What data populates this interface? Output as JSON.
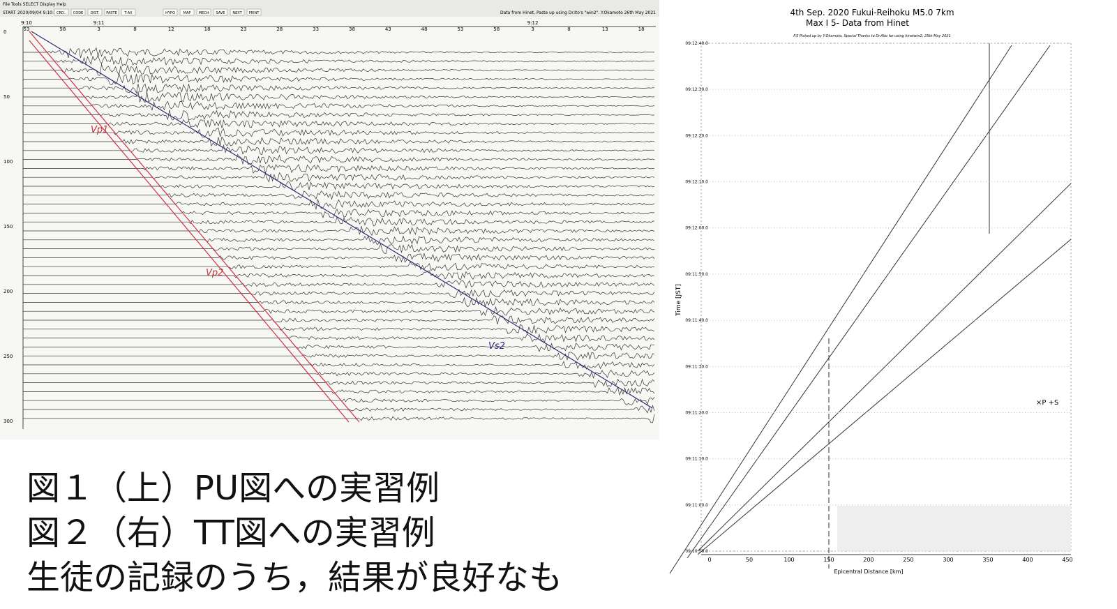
{
  "toolbar": {
    "menu": "File  Tools  SELECT  Display  Help",
    "start_label": "START",
    "start_value": "2020/09/04 9:10:34",
    "buttons": [
      "CRD..",
      "CODE",
      "DIST.",
      "PASTE",
      "T-AX",
      "HYPO",
      "MAP",
      "MECH",
      "SAVE",
      "NEXT",
      "PRINT"
    ],
    "credit": "Data from Hinet, Paste up using Dr.Ito's \"win2\". Y.Okamoto 26th May 2021"
  },
  "seismogram": {
    "time_labels": [
      "53",
      "58",
      "3",
      "8",
      "12",
      "18",
      "23",
      "28",
      "33",
      "38",
      "43",
      "48",
      "53",
      "58",
      "3",
      "8",
      "13",
      "18"
    ],
    "minute_labels": [
      "9:10",
      "9:11",
      "9:12"
    ],
    "trace_labels": [
      "0",
      "50",
      "100",
      "150",
      "200",
      "250",
      "300"
    ],
    "annotations": [
      "Vp1",
      "Vp2",
      "Vs2"
    ]
  },
  "tt_chart": {
    "title": "4th Sep. 2020 Fukui-Reihoku M5.0 7km",
    "title2": "Max I 5- Data from Hinet",
    "subtitle": "P,S Picked up by Y.Okamoto, Special Thanks to Dr.Aito for using hinetwin2, 25th May 2021",
    "y_label": "Time [JST]",
    "x_label": "Epicentral Distance [km]",
    "yticks": [
      "09:10:50.0",
      "09:11:00.0",
      "09:11:10.0",
      "09:11:20.0",
      "09:11:30.0",
      "09:11:40.0",
      "09:11:50.0",
      "09:12:00.0",
      "09:12:10.0",
      "09:12:20.0",
      "09:12:30.0",
      "09:12:40.0"
    ],
    "xticks": [
      "0",
      "50",
      "100",
      "150",
      "200",
      "250",
      "300",
      "350",
      "400",
      "450"
    ],
    "legend": "×P  +S"
  },
  "caption": [
    "図１（上）PU図への実習例",
    "図２（右）TT図への実習例",
    "生徒の記録のうち，結果が良好なも"
  ]
}
